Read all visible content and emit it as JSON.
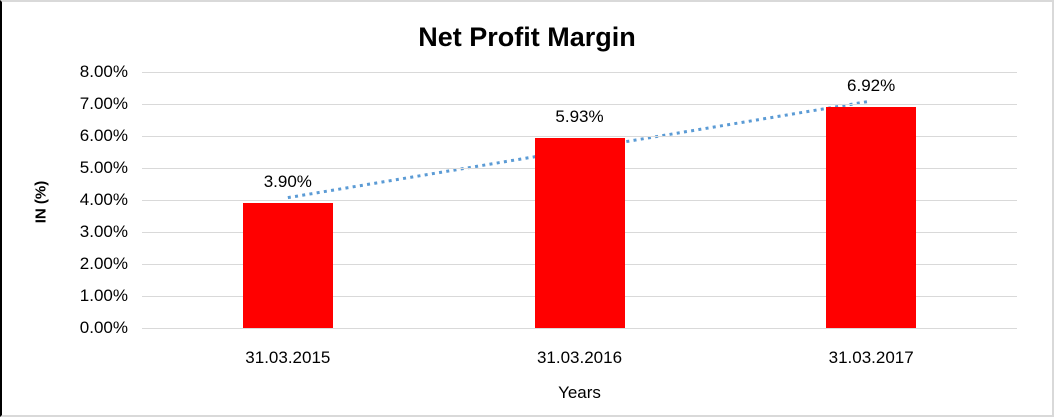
{
  "window": {
    "background": "#FFFFFF",
    "frame_border_color": "#D9D9D9",
    "left_edge_color": "#000000"
  },
  "chart_data": {
    "type": "bar",
    "title": "Net Profit Margin",
    "categories": [
      "31.03.2015",
      "31.03.2016",
      "31.03.2017"
    ],
    "values": [
      3.9,
      5.93,
      6.92
    ],
    "data_labels": [
      "3.90%",
      "5.93%",
      "6.92%"
    ],
    "xlabel": "Years",
    "ylabel": "IN (%)",
    "ylim": [
      0,
      8
    ],
    "ytick_labels": [
      "0.00%",
      "1.00%",
      "2.00%",
      "3.00%",
      "4.00%",
      "5.00%",
      "6.00%",
      "7.00%",
      "8.00%"
    ],
    "grid": true,
    "legend_position": "none",
    "bar_color": "#FF0000",
    "gridline_color": "#D9D9D9",
    "text_color": "#000000",
    "trendline": {
      "type": "linear",
      "style": "dotted",
      "color": "#5B9BD5"
    }
  }
}
